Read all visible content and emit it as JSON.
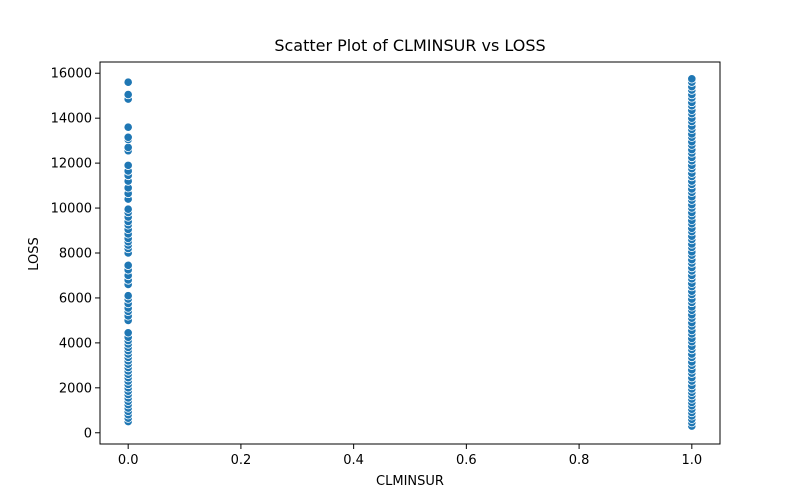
{
  "chart_data": {
    "type": "scatter",
    "title": "Scatter Plot of CLMINSUR vs LOSS",
    "xlabel": "CLMINSUR",
    "ylabel": "LOSS",
    "xlim": [
      -0.05,
      1.05
    ],
    "ylim": [
      -500,
      16500
    ],
    "xticks": [
      0.0,
      0.2,
      0.4,
      0.6,
      0.8,
      1.0
    ],
    "xtick_labels": [
      "0.0",
      "0.2",
      "0.4",
      "0.6",
      "0.8",
      "1.0"
    ],
    "yticks": [
      0,
      2000,
      4000,
      6000,
      8000,
      10000,
      12000,
      14000,
      16000
    ],
    "ytick_labels": [
      "0",
      "2000",
      "4000",
      "6000",
      "8000",
      "10000",
      "12000",
      "14000",
      "16000"
    ],
    "grid": false,
    "marker_color": "#1f77b4",
    "series": [
      {
        "points": [
          [
            0,
            500
          ],
          [
            0,
            650
          ],
          [
            0,
            800
          ],
          [
            0,
            950
          ],
          [
            0,
            1100
          ],
          [
            0,
            1250
          ],
          [
            0,
            1400
          ],
          [
            0,
            1550
          ],
          [
            0,
            1700
          ],
          [
            0,
            1850
          ],
          [
            0,
            2000
          ],
          [
            0,
            2150
          ],
          [
            0,
            2300
          ],
          [
            0,
            2450
          ],
          [
            0,
            2600
          ],
          [
            0,
            2750
          ],
          [
            0,
            2900
          ],
          [
            0,
            3050
          ],
          [
            0,
            3200
          ],
          [
            0,
            3350
          ],
          [
            0,
            3500
          ],
          [
            0,
            3650
          ],
          [
            0,
            3800
          ],
          [
            0,
            3950
          ],
          [
            0,
            4100
          ],
          [
            0,
            4250
          ],
          [
            0,
            4450
          ],
          [
            0,
            5000
          ],
          [
            0,
            5200
          ],
          [
            0,
            5400
          ],
          [
            0,
            5550
          ],
          [
            0,
            5750
          ],
          [
            0,
            5950
          ],
          [
            0,
            6100
          ],
          [
            0,
            6600
          ],
          [
            0,
            6800
          ],
          [
            0,
            7000
          ],
          [
            0,
            7250
          ],
          [
            0,
            7450
          ],
          [
            0,
            8000
          ],
          [
            0,
            8200
          ],
          [
            0,
            8350
          ],
          [
            0,
            8500
          ],
          [
            0,
            8650
          ],
          [
            0,
            8850
          ],
          [
            0,
            9050
          ],
          [
            0,
            9250
          ],
          [
            0,
            9400
          ],
          [
            0,
            9600
          ],
          [
            0,
            9800
          ],
          [
            0,
            9950
          ],
          [
            0,
            10400
          ],
          [
            0,
            10650
          ],
          [
            0,
            10900
          ],
          [
            0,
            11200
          ],
          [
            0,
            11450
          ],
          [
            0,
            11650
          ],
          [
            0,
            11900
          ],
          [
            0,
            12550
          ],
          [
            0,
            12700
          ],
          [
            0,
            13050
          ],
          [
            0,
            13150
          ],
          [
            0,
            13600
          ],
          [
            0,
            14850
          ],
          [
            0,
            15050
          ],
          [
            0,
            15600
          ],
          [
            1,
            300
          ],
          [
            1,
            450
          ],
          [
            1,
            600
          ],
          [
            1,
            750
          ],
          [
            1,
            900
          ],
          [
            1,
            1050
          ],
          [
            1,
            1200
          ],
          [
            1,
            1350
          ],
          [
            1,
            1500
          ],
          [
            1,
            1650
          ],
          [
            1,
            1800
          ],
          [
            1,
            1950
          ],
          [
            1,
            2100
          ],
          [
            1,
            2300
          ],
          [
            1,
            2450
          ],
          [
            1,
            2650
          ],
          [
            1,
            2800
          ],
          [
            1,
            3000
          ],
          [
            1,
            3150
          ],
          [
            1,
            3350
          ],
          [
            1,
            3500
          ],
          [
            1,
            3700
          ],
          [
            1,
            3850
          ],
          [
            1,
            4050
          ],
          [
            1,
            4200
          ],
          [
            1,
            4400
          ],
          [
            1,
            4550
          ],
          [
            1,
            4750
          ],
          [
            1,
            4900
          ],
          [
            1,
            5100
          ],
          [
            1,
            5250
          ],
          [
            1,
            5450
          ],
          [
            1,
            5600
          ],
          [
            1,
            5800
          ],
          [
            1,
            5950
          ],
          [
            1,
            6150
          ],
          [
            1,
            6300
          ],
          [
            1,
            6500
          ],
          [
            1,
            6650
          ],
          [
            1,
            6850
          ],
          [
            1,
            7000
          ],
          [
            1,
            7200
          ],
          [
            1,
            7350
          ],
          [
            1,
            7550
          ],
          [
            1,
            7700
          ],
          [
            1,
            7900
          ],
          [
            1,
            8050
          ],
          [
            1,
            8250
          ],
          [
            1,
            8400
          ],
          [
            1,
            8600
          ],
          [
            1,
            8750
          ],
          [
            1,
            8950
          ],
          [
            1,
            9100
          ],
          [
            1,
            9300
          ],
          [
            1,
            9450
          ],
          [
            1,
            9650
          ],
          [
            1,
            9800
          ],
          [
            1,
            10000
          ],
          [
            1,
            10150
          ],
          [
            1,
            10350
          ],
          [
            1,
            10500
          ],
          [
            1,
            10700
          ],
          [
            1,
            10850
          ],
          [
            1,
            11050
          ],
          [
            1,
            11200
          ],
          [
            1,
            11400
          ],
          [
            1,
            11550
          ],
          [
            1,
            11750
          ],
          [
            1,
            11900
          ],
          [
            1,
            12100
          ],
          [
            1,
            12250
          ],
          [
            1,
            12450
          ],
          [
            1,
            12600
          ],
          [
            1,
            12800
          ],
          [
            1,
            12950
          ],
          [
            1,
            13150
          ],
          [
            1,
            13300
          ],
          [
            1,
            13500
          ],
          [
            1,
            13650
          ],
          [
            1,
            13850
          ],
          [
            1,
            14000
          ],
          [
            1,
            14200
          ],
          [
            1,
            14350
          ],
          [
            1,
            14550
          ],
          [
            1,
            14700
          ],
          [
            1,
            14900
          ],
          [
            1,
            15050
          ],
          [
            1,
            15250
          ],
          [
            1,
            15400
          ],
          [
            1,
            15600
          ],
          [
            1,
            15750
          ]
        ]
      }
    ]
  }
}
